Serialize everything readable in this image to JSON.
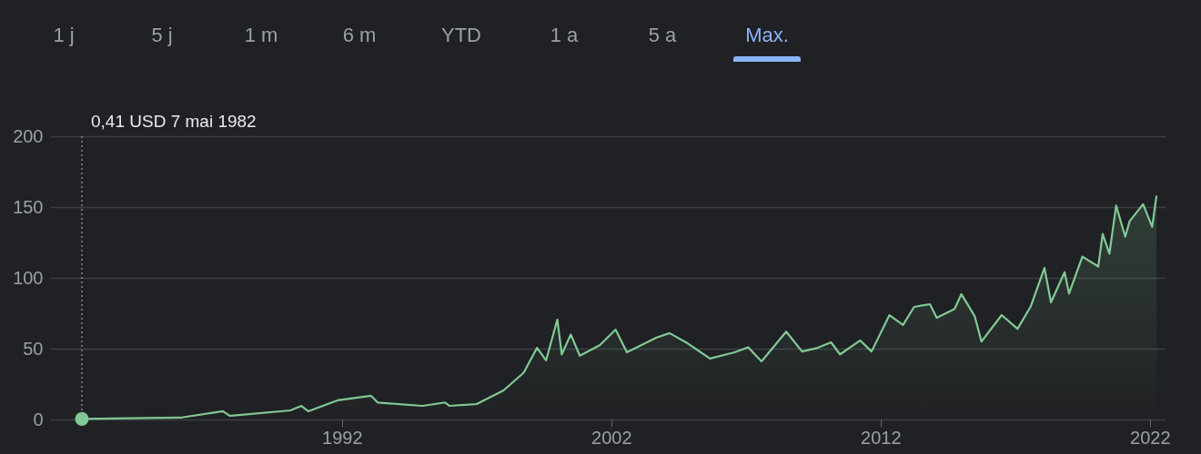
{
  "chart_data": {
    "type": "area",
    "x": [
      "1982-05-07",
      "1986-01",
      "1987-08",
      "1987-11",
      "1990-02",
      "1990-07",
      "1990-10",
      "1991-11",
      "1993-02",
      "1993-05",
      "1995-01",
      "1995-11",
      "1996-01",
      "1997-01",
      "1998-01",
      "1998-10",
      "1999-04",
      "1999-08",
      "2000-01",
      "2000-03",
      "2000-07",
      "2000-11",
      "2001-08",
      "2002-03",
      "2002-08",
      "2003-09",
      "2004-03",
      "2004-11",
      "2005-09",
      "2006-08",
      "2007-02",
      "2007-08",
      "2008-07",
      "2009-02",
      "2009-09",
      "2010-03",
      "2010-07",
      "2011-04",
      "2011-09",
      "2012-05",
      "2012-11",
      "2013-04",
      "2013-11",
      "2014-02",
      "2014-10",
      "2015-01",
      "2015-07",
      "2015-10",
      "2016-07",
      "2017-02",
      "2017-08",
      "2018-02",
      "2018-05",
      "2018-11",
      "2019-01",
      "2019-07",
      "2020-02",
      "2020-04",
      "2020-07",
      "2020-10",
      "2021-02",
      "2021-04",
      "2021-10",
      "2022-02",
      "2022-04"
    ],
    "series": [
      {
        "color": "#81c995",
        "values": [
          0.41,
          1.3,
          5.8,
          2.6,
          6.4,
          9.6,
          5.8,
          13.5,
          16.7,
          12,
          9.6,
          12,
          9.6,
          10.9,
          20.5,
          33,
          50.6,
          41.7,
          70.5,
          46,
          60,
          45,
          52.6,
          63.5,
          47.4,
          57.7,
          61,
          53.8,
          43,
          47.4,
          51,
          41,
          62,
          48,
          50.6,
          54.5,
          46,
          55.8,
          48,
          73.7,
          66.7,
          79.5,
          81.4,
          71.8,
          78,
          88.5,
          73,
          55,
          73.7,
          64,
          80,
          107,
          82.7,
          104,
          89,
          115,
          108,
          131,
          117,
          151,
          129,
          140,
          152,
          136,
          158
        ]
      },
      {
        "type": "scatter",
        "color": "#81c995",
        "x": [
          "1982-05-07"
        ],
        "values": [
          0.41
        ]
      }
    ],
    "xlim": [
      "1981-03",
      "2022-08"
    ],
    "xticks": [
      "1992",
      "2002",
      "2012",
      "2022"
    ],
    "ylim": [
      0,
      200
    ],
    "yticks": [
      0,
      50,
      100,
      150,
      200
    ],
    "grid": "y",
    "ref_lines": [
      {
        "axis": "x",
        "value": "1982-05-07",
        "line_style": "dotted",
        "label": "0,41 USD  7 mai 1982"
      }
    ],
    "annotations": [
      "1 j",
      "5 j",
      "1 m",
      "6 m",
      "YTD",
      "1 a",
      "5 a",
      "Max."
    ]
  }
}
